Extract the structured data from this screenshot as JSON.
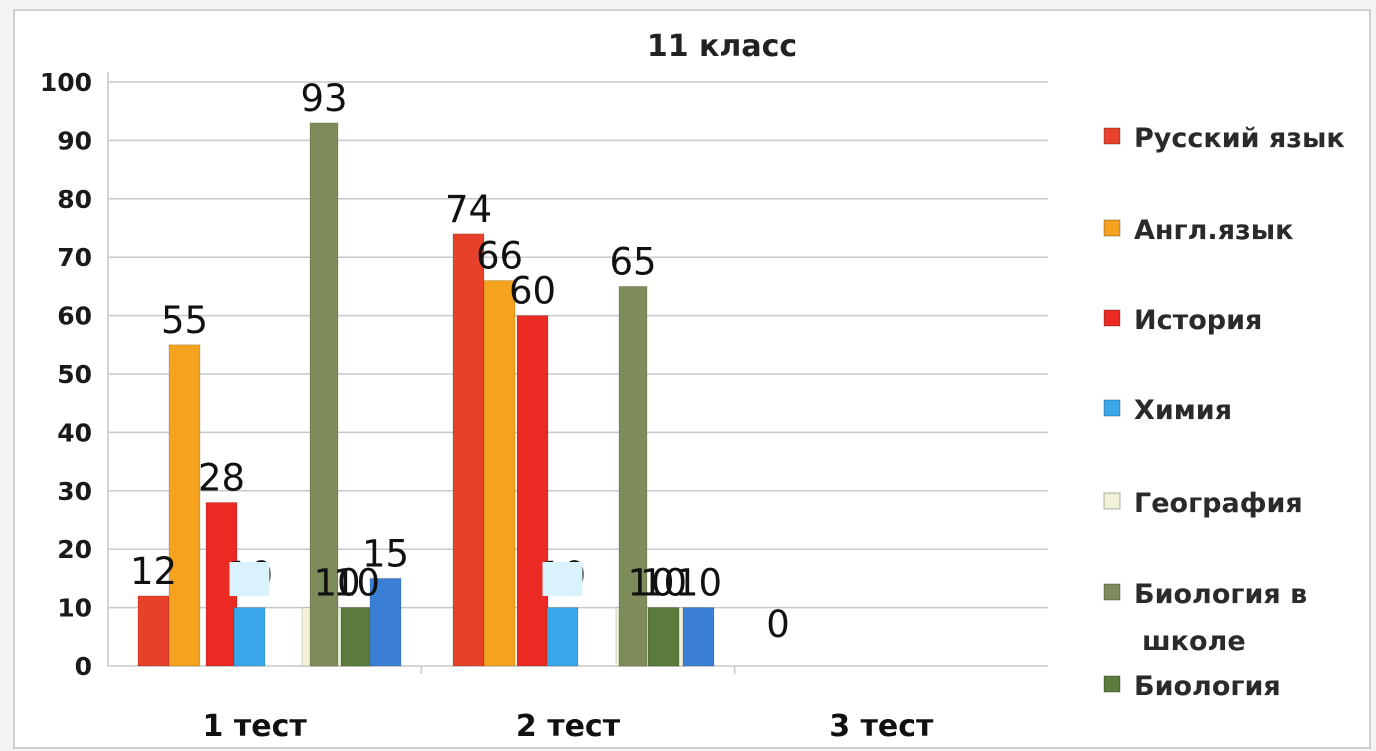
{
  "chart_data": {
    "type": "bar",
    "title": "11 класс",
    "categories": [
      "1 тест",
      "2 тест",
      "3 тест"
    ],
    "ylim": [
      0,
      100
    ],
    "yticks": [
      0,
      10,
      20,
      30,
      40,
      50,
      60,
      70,
      80,
      90,
      100
    ],
    "grid": true,
    "legend_position": "right",
    "series": [
      {
        "name": "Русский язык",
        "color": "#e8412a",
        "values": [
          12,
          74,
          0
        ]
      },
      {
        "name": "Англ.язык",
        "color": "#f5a21e",
        "values": [
          55,
          66,
          0
        ]
      },
      {
        "name": "История",
        "color": "#ec2a24",
        "values": [
          28,
          60,
          0
        ]
      },
      {
        "name": "Химия",
        "color": "#3aa7ea",
        "values": [
          10,
          10,
          0
        ]
      },
      {
        "name": "География",
        "color": "#f1f2d9",
        "values": [
          10,
          10,
          0
        ]
      },
      {
        "name": "Биология в школе",
        "color": "#7d8c5a",
        "values": [
          93,
          65,
          0
        ]
      },
      {
        "name": "Биология",
        "color": "#5a7b3c",
        "values": [
          10,
          10,
          0
        ]
      },
      {
        "name": "",
        "color": "#3c7fd6",
        "values": [
          15,
          10,
          0
        ]
      }
    ],
    "data_labels": [
      [
        "12",
        "55",
        "28",
        "10",
        "10",
        "93",
        "10",
        "15"
      ],
      [
        "74",
        "66",
        "60",
        "10",
        "10",
        "65",
        "10",
        "10"
      ],
      [
        "0"
      ]
    ]
  }
}
